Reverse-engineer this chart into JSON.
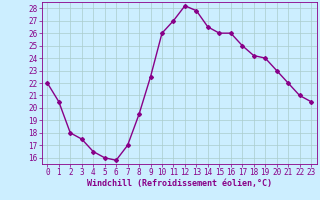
{
  "x": [
    0,
    1,
    2,
    3,
    4,
    5,
    6,
    7,
    8,
    9,
    10,
    11,
    12,
    13,
    14,
    15,
    16,
    17,
    18,
    19,
    20,
    21,
    22,
    23
  ],
  "y": [
    22,
    20.5,
    18,
    17.5,
    16.5,
    16,
    15.8,
    17,
    19.5,
    22.5,
    26,
    27,
    28.2,
    27.8,
    26.5,
    26,
    26,
    25,
    24.2,
    24,
    23,
    22,
    21,
    20.5
  ],
  "line_color": "#880088",
  "marker": "D",
  "marker_size": 2,
  "bg_color": "#cceeff",
  "grid_color": "#aacccc",
  "xlabel": "Windchill (Refroidissement éolien,°C)",
  "xlim": [
    -0.5,
    23.5
  ],
  "ylim": [
    15.5,
    28.5
  ],
  "yticks": [
    16,
    17,
    18,
    19,
    20,
    21,
    22,
    23,
    24,
    25,
    26,
    27,
    28
  ],
  "xticks": [
    0,
    1,
    2,
    3,
    4,
    5,
    6,
    7,
    8,
    9,
    10,
    11,
    12,
    13,
    14,
    15,
    16,
    17,
    18,
    19,
    20,
    21,
    22,
    23
  ],
  "label_fontsize": 6,
  "tick_fontsize": 5.5,
  "line_width": 1.0
}
